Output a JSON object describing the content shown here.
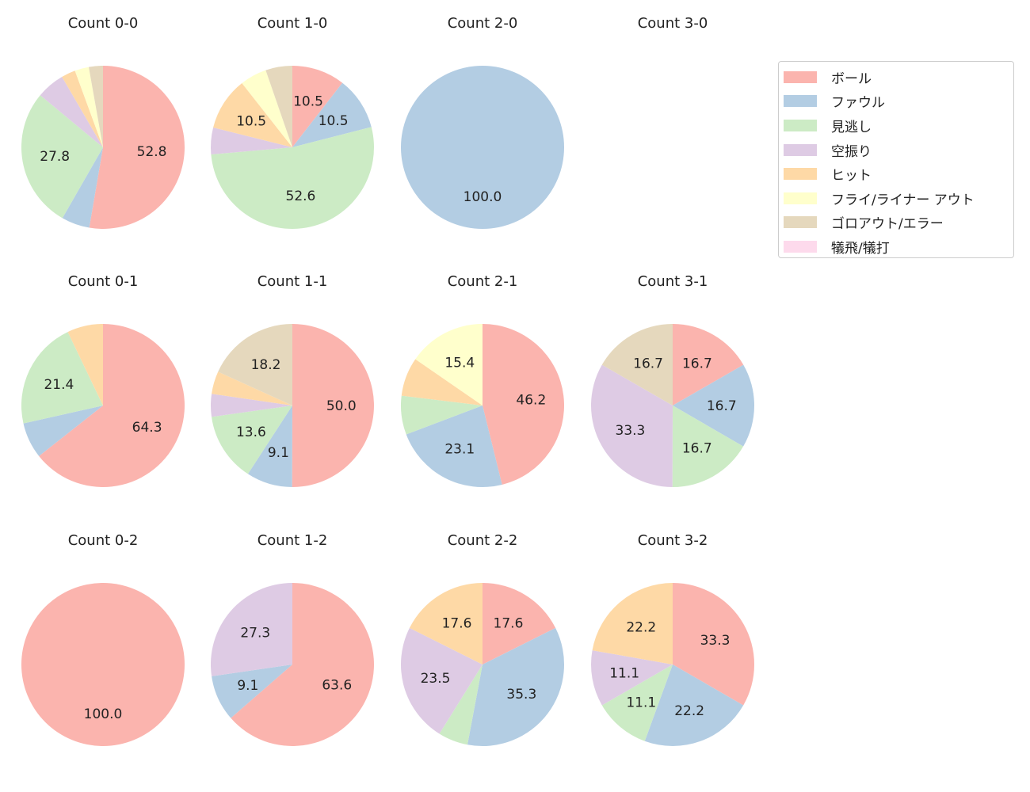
{
  "chart_data": {
    "type": "pie",
    "categories": [
      "ボール",
      "ファウル",
      "見逃し",
      "空振り",
      "ヒット",
      "フライ/ライナー アウト",
      "ゴロアウト/エラー",
      "犠飛/犠打"
    ],
    "colors": [
      "#fbb4ae",
      "#b3cde3",
      "#ccebc5",
      "#decbe4",
      "#fed9a6",
      "#ffffcc",
      "#e5d8bd",
      "#fddaec"
    ],
    "legend_position": "right",
    "start_angle_deg": 90,
    "direction": "clockwise",
    "pies": [
      {
        "title": "Count 0-0",
        "values": [
          52.8,
          5.6,
          27.8,
          5.6,
          2.8,
          2.8,
          2.8,
          0
        ]
      },
      {
        "title": "Count 1-0",
        "values": [
          10.5,
          10.5,
          52.6,
          5.3,
          10.5,
          5.3,
          5.3,
          0
        ]
      },
      {
        "title": "Count 2-0",
        "values": [
          0,
          100.0,
          0,
          0,
          0,
          0,
          0,
          0
        ]
      },
      {
        "title": "Count 3-0",
        "values": []
      },
      {
        "title": "Count 0-1",
        "values": [
          64.3,
          7.1,
          21.4,
          0,
          7.1,
          0,
          0,
          0
        ]
      },
      {
        "title": "Count 1-1",
        "values": [
          50.0,
          9.1,
          13.6,
          4.5,
          4.5,
          0,
          18.2,
          0
        ]
      },
      {
        "title": "Count 2-1",
        "values": [
          46.2,
          23.1,
          7.7,
          0,
          7.7,
          15.4,
          0,
          0
        ]
      },
      {
        "title": "Count 3-1",
        "values": [
          16.7,
          16.7,
          16.7,
          33.3,
          0,
          0,
          16.7,
          0
        ]
      },
      {
        "title": "Count 0-2",
        "values": [
          100.0,
          0,
          0,
          0,
          0,
          0,
          0,
          0
        ]
      },
      {
        "title": "Count 1-2",
        "values": [
          63.6,
          9.1,
          0,
          27.3,
          0,
          0,
          0,
          0
        ]
      },
      {
        "title": "Count 2-2",
        "values": [
          17.6,
          35.3,
          5.9,
          23.5,
          17.6,
          0,
          0,
          0
        ]
      },
      {
        "title": "Count 3-2",
        "values": [
          33.3,
          22.2,
          11.1,
          11.1,
          22.2,
          0,
          0,
          0
        ]
      }
    ]
  }
}
